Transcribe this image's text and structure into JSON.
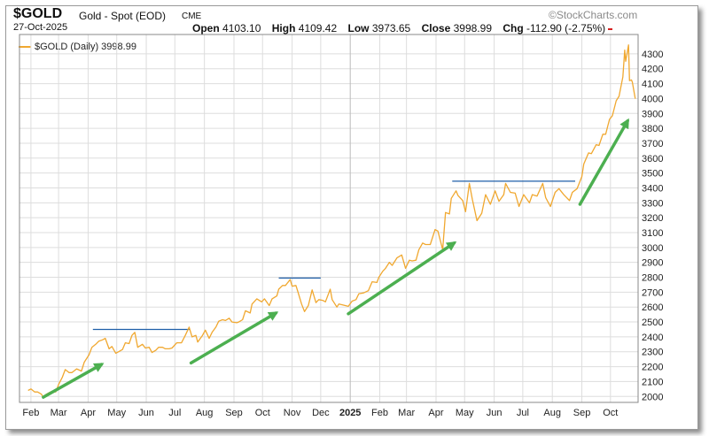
{
  "header": {
    "symbol": "$GOLD",
    "description": "Gold - Spot (EOD)",
    "exchange": "CME",
    "date": "27-Oct-2025",
    "brand": "©StockCharts.com",
    "open_label": "Open",
    "open": "4103.10",
    "high_label": "High",
    "high": "4109.42",
    "low_label": "Low",
    "low": "3973.65",
    "close_label": "Close",
    "close": "3998.99",
    "chg_label": "Chg",
    "chg": "-112.90 (-2.75%)"
  },
  "legend": {
    "label": "$GOLD (Daily) 3998.99"
  },
  "colors": {
    "line": "#f0a830",
    "resistance": "#1f5fa8",
    "arrow": "#4caf50",
    "grid": "#dddddd",
    "down": "#d62020"
  },
  "chart_data": {
    "type": "line",
    "series": [
      {
        "name": "$GOLD (Daily)",
        "points": [
          [
            "2024-01-29",
            2040
          ],
          [
            "2024-02-01",
            2050
          ],
          [
            "2024-02-05",
            2030
          ],
          [
            "2024-02-08",
            2030
          ],
          [
            "2024-02-12",
            2015
          ],
          [
            "2024-02-14",
            1993
          ],
          [
            "2024-02-16",
            2010
          ],
          [
            "2024-02-20",
            2025
          ],
          [
            "2024-02-23",
            2035
          ],
          [
            "2024-02-27",
            2030
          ],
          [
            "2024-03-01",
            2080
          ],
          [
            "2024-03-05",
            2130
          ],
          [
            "2024-03-08",
            2180
          ],
          [
            "2024-03-12",
            2160
          ],
          [
            "2024-03-15",
            2160
          ],
          [
            "2024-03-20",
            2185
          ],
          [
            "2024-03-25",
            2170
          ],
          [
            "2024-03-28",
            2230
          ],
          [
            "2024-04-02",
            2280
          ],
          [
            "2024-04-05",
            2330
          ],
          [
            "2024-04-09",
            2350
          ],
          [
            "2024-04-12",
            2370
          ],
          [
            "2024-04-16",
            2380
          ],
          [
            "2024-04-19",
            2390
          ],
          [
            "2024-04-23",
            2320
          ],
          [
            "2024-04-26",
            2335
          ],
          [
            "2024-04-30",
            2290
          ],
          [
            "2024-05-03",
            2300
          ],
          [
            "2024-05-07",
            2315
          ],
          [
            "2024-05-10",
            2360
          ],
          [
            "2024-05-14",
            2355
          ],
          [
            "2024-05-17",
            2410
          ],
          [
            "2024-05-20",
            2430
          ],
          [
            "2024-05-23",
            2330
          ],
          [
            "2024-05-28",
            2350
          ],
          [
            "2024-05-31",
            2325
          ],
          [
            "2024-06-04",
            2330
          ],
          [
            "2024-06-07",
            2295
          ],
          [
            "2024-06-11",
            2310
          ],
          [
            "2024-06-14",
            2330
          ],
          [
            "2024-06-18",
            2330
          ],
          [
            "2024-06-21",
            2320
          ],
          [
            "2024-06-25",
            2320
          ],
          [
            "2024-06-28",
            2325
          ],
          [
            "2024-07-03",
            2360
          ],
          [
            "2024-07-08",
            2360
          ],
          [
            "2024-07-12",
            2410
          ],
          [
            "2024-07-16",
            2465
          ],
          [
            "2024-07-19",
            2400
          ],
          [
            "2024-07-23",
            2410
          ],
          [
            "2024-07-25",
            2365
          ],
          [
            "2024-07-30",
            2410
          ],
          [
            "2024-08-02",
            2445
          ],
          [
            "2024-08-06",
            2390
          ],
          [
            "2024-08-09",
            2430
          ],
          [
            "2024-08-13",
            2465
          ],
          [
            "2024-08-16",
            2505
          ],
          [
            "2024-08-20",
            2515
          ],
          [
            "2024-08-23",
            2510
          ],
          [
            "2024-08-27",
            2525
          ],
          [
            "2024-08-30",
            2500
          ],
          [
            "2024-09-04",
            2495
          ],
          [
            "2024-09-06",
            2500
          ],
          [
            "2024-09-10",
            2515
          ],
          [
            "2024-09-13",
            2575
          ],
          [
            "2024-09-18",
            2560
          ],
          [
            "2024-09-20",
            2620
          ],
          [
            "2024-09-25",
            2655
          ],
          [
            "2024-09-30",
            2635
          ],
          [
            "2024-10-03",
            2655
          ],
          [
            "2024-10-08",
            2610
          ],
          [
            "2024-10-11",
            2655
          ],
          [
            "2024-10-16",
            2675
          ],
          [
            "2024-10-18",
            2720
          ],
          [
            "2024-10-22",
            2745
          ],
          [
            "2024-10-25",
            2745
          ],
          [
            "2024-10-30",
            2785
          ],
          [
            "2024-11-01",
            2740
          ],
          [
            "2024-11-05",
            2745
          ],
          [
            "2024-11-07",
            2705
          ],
          [
            "2024-11-11",
            2620
          ],
          [
            "2024-11-14",
            2570
          ],
          [
            "2024-11-18",
            2610
          ],
          [
            "2024-11-22",
            2715
          ],
          [
            "2024-11-26",
            2630
          ],
          [
            "2024-11-29",
            2650
          ],
          [
            "2024-12-03",
            2645
          ],
          [
            "2024-12-06",
            2635
          ],
          [
            "2024-12-11",
            2720
          ],
          [
            "2024-12-13",
            2650
          ],
          [
            "2024-12-18",
            2600
          ],
          [
            "2024-12-20",
            2620
          ],
          [
            "2024-12-24",
            2615
          ],
          [
            "2024-12-30",
            2605
          ],
          [
            "2025-01-03",
            2640
          ],
          [
            "2025-01-07",
            2650
          ],
          [
            "2025-01-10",
            2690
          ],
          [
            "2025-01-15",
            2695
          ],
          [
            "2025-01-20",
            2710
          ],
          [
            "2025-01-24",
            2770
          ],
          [
            "2025-01-29",
            2765
          ],
          [
            "2025-01-31",
            2800
          ],
          [
            "2025-02-04",
            2840
          ],
          [
            "2025-02-07",
            2860
          ],
          [
            "2025-02-11",
            2900
          ],
          [
            "2025-02-14",
            2880
          ],
          [
            "2025-02-19",
            2930
          ],
          [
            "2025-02-24",
            2950
          ],
          [
            "2025-02-28",
            2860
          ],
          [
            "2025-03-04",
            2915
          ],
          [
            "2025-03-07",
            2910
          ],
          [
            "2025-03-11",
            2915
          ],
          [
            "2025-03-14",
            2985
          ],
          [
            "2025-03-18",
            3030
          ],
          [
            "2025-03-21",
            3020
          ],
          [
            "2025-03-26",
            3020
          ],
          [
            "2025-03-31",
            3120
          ],
          [
            "2025-04-03",
            3110
          ],
          [
            "2025-04-08",
            2985
          ],
          [
            "2025-04-11",
            3235
          ],
          [
            "2025-04-15",
            3225
          ],
          [
            "2025-04-17",
            3330
          ],
          [
            "2025-04-22",
            3380
          ],
          [
            "2025-04-24",
            3350
          ],
          [
            "2025-04-29",
            3315
          ],
          [
            "2025-05-02",
            3240
          ],
          [
            "2025-05-06",
            3430
          ],
          [
            "2025-05-09",
            3325
          ],
          [
            "2025-05-14",
            3180
          ],
          [
            "2025-05-19",
            3230
          ],
          [
            "2025-05-23",
            3355
          ],
          [
            "2025-05-28",
            3290
          ],
          [
            "2025-06-02",
            3380
          ],
          [
            "2025-06-06",
            3310
          ],
          [
            "2025-06-11",
            3355
          ],
          [
            "2025-06-13",
            3430
          ],
          [
            "2025-06-18",
            3370
          ],
          [
            "2025-06-23",
            3365
          ],
          [
            "2025-06-27",
            3275
          ],
          [
            "2025-07-02",
            3355
          ],
          [
            "2025-07-08",
            3300
          ],
          [
            "2025-07-11",
            3355
          ],
          [
            "2025-07-16",
            3345
          ],
          [
            "2025-07-22",
            3430
          ],
          [
            "2025-07-25",
            3335
          ],
          [
            "2025-07-30",
            3275
          ],
          [
            "2025-08-04",
            3370
          ],
          [
            "2025-08-08",
            3395
          ],
          [
            "2025-08-13",
            3355
          ],
          [
            "2025-08-19",
            3315
          ],
          [
            "2025-08-22",
            3370
          ],
          [
            "2025-08-27",
            3395
          ],
          [
            "2025-09-01",
            3475
          ],
          [
            "2025-09-03",
            3560
          ],
          [
            "2025-09-08",
            3635
          ],
          [
            "2025-09-11",
            3630
          ],
          [
            "2025-09-16",
            3690
          ],
          [
            "2025-09-19",
            3685
          ],
          [
            "2025-09-23",
            3760
          ],
          [
            "2025-09-26",
            3760
          ],
          [
            "2025-09-30",
            3860
          ],
          [
            "2025-10-03",
            3885
          ],
          [
            "2025-10-07",
            3985
          ],
          [
            "2025-10-10",
            4015
          ],
          [
            "2025-10-14",
            4145
          ],
          [
            "2025-10-16",
            4325
          ],
          [
            "2025-10-17",
            4250
          ],
          [
            "2025-10-20",
            4360
          ],
          [
            "2025-10-21",
            4120
          ],
          [
            "2025-10-23",
            4125
          ],
          [
            "2025-10-24",
            4110
          ],
          [
            "2025-10-27",
            3999
          ]
        ]
      }
    ],
    "resistance_levels": [
      {
        "start": "2024-04-06",
        "end": "2024-07-17",
        "value": 2450
      },
      {
        "start": "2024-10-18",
        "end": "2024-12-01",
        "value": 2795
      },
      {
        "start": "2025-04-18",
        "end": "2025-08-25",
        "value": 3445
      }
    ],
    "trend_arrows": [
      {
        "from": [
          "2024-02-14",
          1995
        ],
        "to": [
          "2024-04-15",
          2215
        ]
      },
      {
        "from": [
          "2024-07-18",
          2225
        ],
        "to": [
          "2024-10-15",
          2560
        ]
      },
      {
        "from": [
          "2024-12-30",
          2555
        ],
        "to": [
          "2025-04-20",
          3030
        ]
      },
      {
        "from": [
          "2025-08-30",
          3290
        ],
        "to": [
          "2025-10-19",
          3850
        ]
      }
    ],
    "x_ticks": [
      {
        "date": "2024-02-01",
        "label": "Feb",
        "bold": false
      },
      {
        "date": "2024-03-01",
        "label": "Mar",
        "bold": false
      },
      {
        "date": "2024-04-01",
        "label": "Apr",
        "bold": false
      },
      {
        "date": "2024-05-01",
        "label": "May",
        "bold": false
      },
      {
        "date": "2024-06-01",
        "label": "Jun",
        "bold": false
      },
      {
        "date": "2024-07-01",
        "label": "Jul",
        "bold": false
      },
      {
        "date": "2024-08-01",
        "label": "Aug",
        "bold": false
      },
      {
        "date": "2024-09-01",
        "label": "Sep",
        "bold": false
      },
      {
        "date": "2024-10-01",
        "label": "Oct",
        "bold": false
      },
      {
        "date": "2024-11-01",
        "label": "Nov",
        "bold": false
      },
      {
        "date": "2024-12-01",
        "label": "Dec",
        "bold": false
      },
      {
        "date": "2025-01-01",
        "label": "2025",
        "bold": true
      },
      {
        "date": "2025-02-01",
        "label": "Feb",
        "bold": false
      },
      {
        "date": "2025-03-01",
        "label": "Mar",
        "bold": false
      },
      {
        "date": "2025-04-01",
        "label": "Apr",
        "bold": false
      },
      {
        "date": "2025-05-01",
        "label": "May",
        "bold": false
      },
      {
        "date": "2025-06-01",
        "label": "Jun",
        "bold": false
      },
      {
        "date": "2025-07-01",
        "label": "Jul",
        "bold": false
      },
      {
        "date": "2025-08-01",
        "label": "Aug",
        "bold": false
      },
      {
        "date": "2025-09-01",
        "label": "Sep",
        "bold": false
      },
      {
        "date": "2025-10-01",
        "label": "Oct",
        "bold": false
      }
    ],
    "y_ticks": [
      2000,
      2100,
      2200,
      2300,
      2400,
      2500,
      2600,
      2700,
      2800,
      2900,
      3000,
      3100,
      3200,
      3300,
      3400,
      3500,
      3600,
      3700,
      3800,
      3900,
      4000,
      4100,
      4200,
      4300
    ],
    "xlim": [
      "2024-01-20",
      "2025-10-30"
    ],
    "ylim": [
      1960,
      4430
    ],
    "grid": true,
    "legend_position": "top-left"
  }
}
